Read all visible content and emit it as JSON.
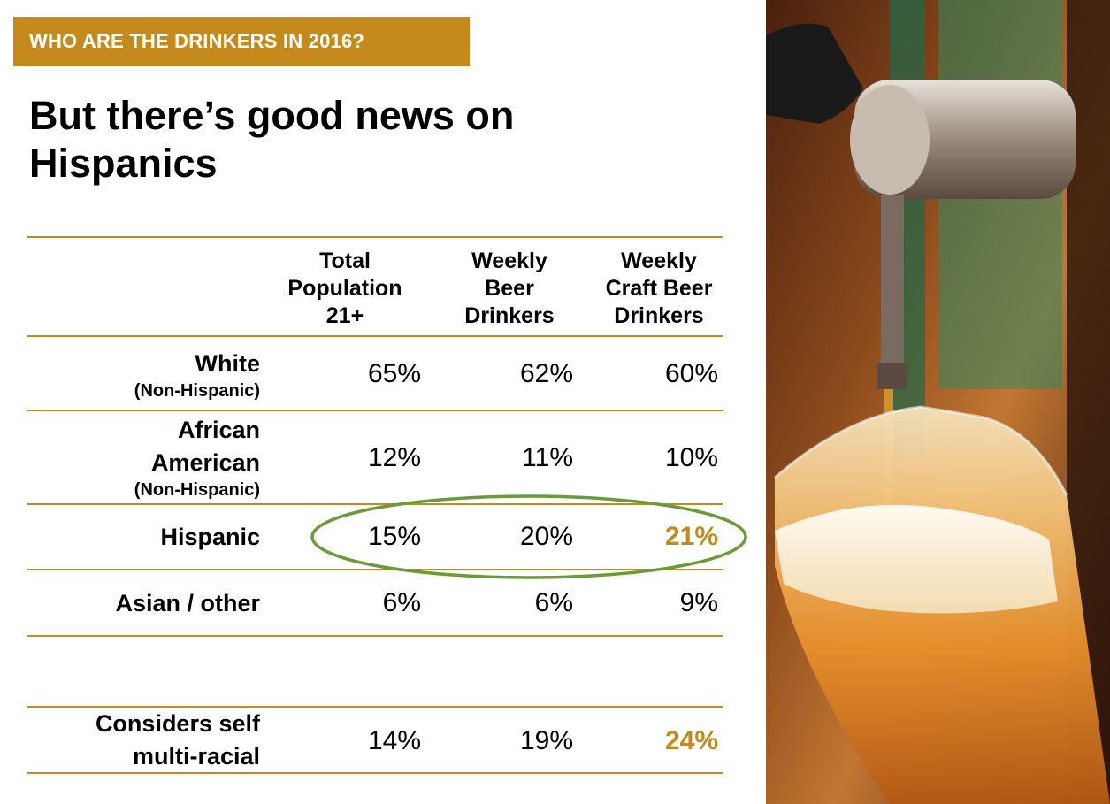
{
  "banner": {
    "text": "WHO ARE THE DRINKERS IN 2016?"
  },
  "title": {
    "line1": "But there’s good news on",
    "line2": "Hispanics"
  },
  "table": {
    "headers": [
      {
        "lines": [
          "Total",
          "Population",
          "21+"
        ]
      },
      {
        "lines": [
          "Weekly",
          "Beer",
          "Drinkers"
        ]
      },
      {
        "lines": [
          "Weekly",
          "Craft Beer",
          "Drinkers"
        ]
      }
    ],
    "rows": [
      {
        "label": [
          "White"
        ],
        "sub": "(Non-Hispanic)",
        "values": [
          "65%",
          "62%",
          "60%"
        ]
      },
      {
        "label": [
          "African",
          "American"
        ],
        "sub": "(Non-Hispanic)",
        "values": [
          "12%",
          "11%",
          "10%"
        ]
      },
      {
        "label": [
          "Hispanic"
        ],
        "sub": "",
        "values": [
          "15%",
          "20%",
          "21%"
        ],
        "highlight_last": true
      },
      {
        "label": [
          "Asian / other"
        ],
        "sub": "",
        "values": [
          "6%",
          "6%",
          "9%"
        ]
      },
      {
        "label": [
          "Considers self",
          "multi-racial"
        ],
        "sub": "",
        "values": [
          "14%",
          "19%",
          "24%"
        ],
        "highlight_last": true
      }
    ]
  },
  "colors": {
    "accent": "#c48a1c",
    "ellipse": "#6a9a3a"
  },
  "photo": {
    "icon": "beer-tap-pouring-image"
  }
}
